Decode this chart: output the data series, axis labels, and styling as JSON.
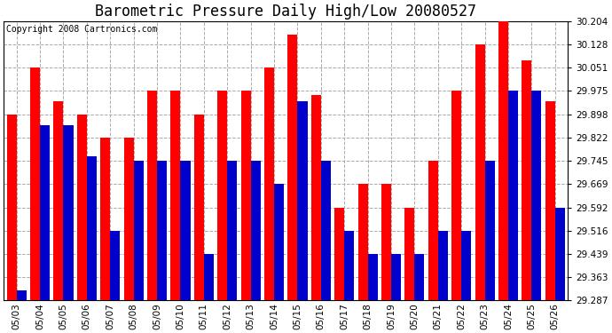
{
  "title": "Barometric Pressure Daily High/Low 20080527",
  "copyright": "Copyright 2008 Cartronics.com",
  "categories": [
    "05/03",
    "05/04",
    "05/05",
    "05/06",
    "05/07",
    "05/08",
    "05/09",
    "05/10",
    "05/11",
    "05/12",
    "05/13",
    "05/14",
    "05/15",
    "05/16",
    "05/17",
    "05/18",
    "05/19",
    "05/20",
    "05/21",
    "05/22",
    "05/23",
    "05/24",
    "05/25",
    "05/26"
  ],
  "highs": [
    29.898,
    30.051,
    29.94,
    29.898,
    29.822,
    29.822,
    29.975,
    29.975,
    29.898,
    29.975,
    29.975,
    30.051,
    30.16,
    29.96,
    29.592,
    29.669,
    29.669,
    29.592,
    29.745,
    29.975,
    30.128,
    30.204,
    30.075,
    29.94
  ],
  "lows": [
    29.32,
    29.863,
    29.863,
    29.76,
    29.516,
    29.745,
    29.745,
    29.745,
    29.439,
    29.745,
    29.745,
    29.669,
    29.94,
    29.745,
    29.516,
    29.439,
    29.439,
    29.439,
    29.516,
    29.516,
    29.745,
    29.975,
    29.975,
    29.592
  ],
  "high_color": "#FF0000",
  "low_color": "#0000CC",
  "background_color": "#FFFFFF",
  "grid_color": "#AAAAAA",
  "ylim_min": 29.287,
  "ylim_max": 30.204,
  "yticks": [
    29.287,
    29.363,
    29.439,
    29.516,
    29.592,
    29.669,
    29.745,
    29.822,
    29.898,
    29.975,
    30.051,
    30.128,
    30.204
  ],
  "title_fontsize": 12,
  "copyright_fontsize": 7,
  "tick_fontsize": 7.5
}
